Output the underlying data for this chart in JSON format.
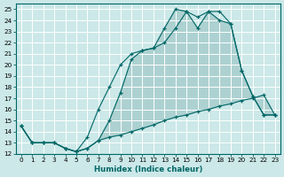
{
  "xlabel": "Humidex (Indice chaleur)",
  "bg_color": "#cce8e8",
  "line_color": "#006666",
  "fill_color": "#a0c8c8",
  "xlim": [
    -0.5,
    23.5
  ],
  "ylim": [
    12,
    25.5
  ],
  "xticks": [
    0,
    1,
    2,
    3,
    4,
    5,
    6,
    7,
    8,
    9,
    10,
    11,
    12,
    13,
    14,
    15,
    16,
    17,
    18,
    19,
    20,
    21,
    22,
    23
  ],
  "yticks": [
    12,
    13,
    14,
    15,
    16,
    17,
    18,
    19,
    20,
    21,
    22,
    23,
    24,
    25
  ],
  "line_low_x": [
    0,
    1,
    2,
    3,
    4,
    5,
    6,
    7,
    8,
    9,
    10,
    11,
    12,
    13,
    14,
    15,
    16,
    17,
    18,
    19,
    20,
    21,
    22,
    23
  ],
  "line_low_y": [
    14.5,
    13,
    13,
    13,
    12.5,
    12.2,
    12.5,
    13.2,
    13.5,
    13.7,
    14.0,
    14.3,
    14.6,
    15.0,
    15.3,
    15.5,
    15.8,
    16.0,
    16.3,
    16.5,
    16.8,
    17.0,
    17.3,
    15.5
  ],
  "line_mid_x": [
    0,
    1,
    2,
    3,
    4,
    5,
    6,
    7,
    8,
    9,
    10,
    11,
    12,
    13,
    14,
    15,
    16,
    17,
    18,
    19,
    20,
    21,
    22,
    23
  ],
  "line_mid_y": [
    14.5,
    13,
    13,
    13,
    12.5,
    12.2,
    13.5,
    16.0,
    18.0,
    20.0,
    21.0,
    21.3,
    21.5,
    22.0,
    23.3,
    24.8,
    24.3,
    24.8,
    24.8,
    23.7,
    19.5,
    17.2,
    15.5,
    15.5
  ],
  "line_up_x": [
    0,
    1,
    2,
    3,
    4,
    5,
    6,
    7,
    8,
    9,
    10,
    11,
    12,
    13,
    14,
    15,
    16,
    17,
    18,
    19,
    20,
    21,
    22,
    23
  ],
  "line_up_y": [
    14.5,
    13,
    13,
    13,
    12.5,
    12.2,
    12.5,
    13.2,
    15.0,
    17.5,
    20.5,
    21.3,
    21.5,
    23.3,
    25.0,
    24.8,
    23.3,
    24.8,
    24.0,
    23.7,
    19.5,
    17.2,
    15.5,
    15.5
  ]
}
